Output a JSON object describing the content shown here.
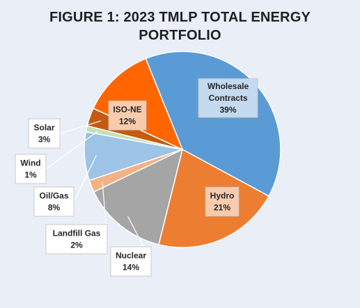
{
  "title_lines": [
    "FIGURE 1: 2023 TMLP TOTAL ENERGY",
    "PORTFOLIO"
  ],
  "chart_data": {
    "type": "pie",
    "title": "FIGURE 1: 2023 TMLP TOTAL ENERGY PORTFOLIO",
    "start_angle_deg": -112,
    "slices": [
      {
        "label": "Wholesale Contracts",
        "display_lines": [
          "Wholesale",
          "Contracts"
        ],
        "value_label": "39%",
        "value": 39,
        "color": "#5b9bd5",
        "label_fill": "#c5d9ef"
      },
      {
        "label": "Hydro",
        "display_lines": [
          "Hydro"
        ],
        "value_label": "21%",
        "value": 21,
        "color": "#ed7d31",
        "label_fill": "#f8cbad"
      },
      {
        "label": "Nuclear",
        "display_lines": [
          "Nuclear"
        ],
        "value_label": "14%",
        "value": 14,
        "color": "#a5a5a5",
        "label_fill": "#ffffff"
      },
      {
        "label": "Landfill Gas",
        "display_lines": [
          "Landfill Gas"
        ],
        "value_label": "2%",
        "value": 2,
        "color": "#f4b183",
        "label_fill": "#ffffff"
      },
      {
        "label": "Oil/Gas",
        "display_lines": [
          "Oil/Gas"
        ],
        "value_label": "8%",
        "value": 8,
        "color": "#9dc3e6",
        "label_fill": "#ffffff"
      },
      {
        "label": "Wind",
        "display_lines": [
          "Wind"
        ],
        "value_label": "1%",
        "value": 1,
        "color": "#c5e0b4",
        "label_fill": "#ffffff"
      },
      {
        "label": "Solar",
        "display_lines": [
          "Solar"
        ],
        "value_label": "3%",
        "value": 3,
        "color": "#c55a11",
        "label_fill": "#ffffff"
      },
      {
        "label": "ISO-NE",
        "display_lines": [
          "ISO-NE"
        ],
        "value_label": "12%",
        "value": 12,
        "color": "#ff6600",
        "label_fill": "#f8cbad"
      }
    ],
    "legend": "none",
    "label_style": "callouts outside for small slices, inside for large slices",
    "background_color": "#e9eef7"
  }
}
